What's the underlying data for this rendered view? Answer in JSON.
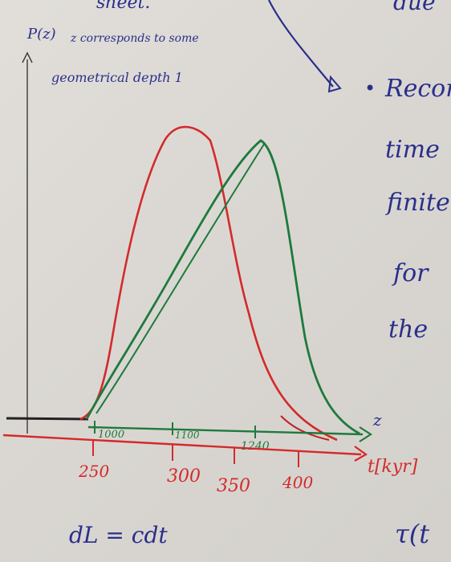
{
  "top_text": {
    "cutoff_left": "sheet.",
    "cutoff_right": "due"
  },
  "annotation": {
    "axis_label": "P(z)",
    "note_line1": "z corresponds to some",
    "note_line2": "geometrical depth 1"
  },
  "right_notes": {
    "bullet": "•",
    "lines": [
      "Recom",
      "time",
      "finite",
      "for",
      "the"
    ]
  },
  "axes": {
    "z_label": "z",
    "t_label": "t[kyr]",
    "z_ticks": [
      "1000",
      "1100",
      "1240"
    ],
    "t_ticks": [
      "250",
      "300",
      "350",
      "400"
    ]
  },
  "bottom_text": {
    "formula": "dL = cdt",
    "cutoff_right": "τ(t"
  },
  "colors": {
    "red_ink": "#d42a2a",
    "green_ink": "#1e7a3c",
    "blue_ink": "#2a2f8a",
    "black_ink": "#222222",
    "paper": "#dedbd7"
  }
}
